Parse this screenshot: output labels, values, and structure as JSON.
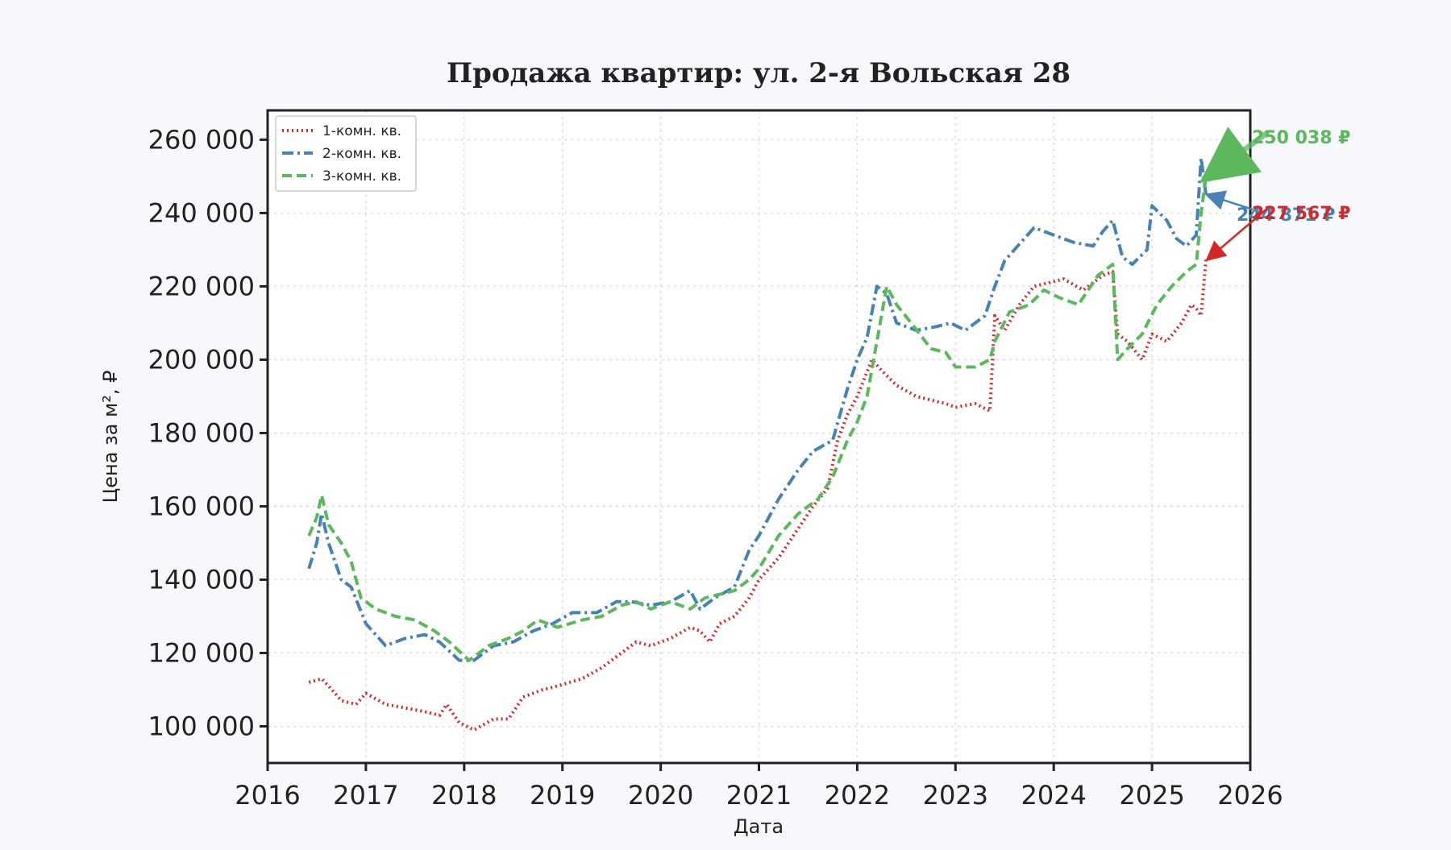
{
  "chart_data": {
    "type": "line",
    "title": "Продажа квартир: ул. 2-я Вольская 28",
    "xlabel": "Дата",
    "ylabel": "Цена за м², ₽",
    "xlim": [
      2016.0,
      2026.0
    ],
    "ylim": [
      90000,
      268000
    ],
    "x_ticks": [
      2016,
      2017,
      2018,
      2019,
      2020,
      2021,
      2022,
      2023,
      2024,
      2025,
      2026
    ],
    "y_ticks": [
      100000,
      120000,
      140000,
      160000,
      180000,
      200000,
      220000,
      240000,
      260000
    ],
    "y_tick_labels": [
      "100 000",
      "120 000",
      "140 000",
      "160 000",
      "180 000",
      "200 000",
      "220 000",
      "240 000",
      "260 000"
    ],
    "grid": true,
    "legend_position": "top-left",
    "series": [
      {
        "name": "1-комн. кв.",
        "color": "#d62728",
        "style": "dotted",
        "x": [
          2016.42,
          2016.55,
          2016.62,
          2016.75,
          2016.9,
          2017.0,
          2017.2,
          2017.4,
          2017.6,
          2017.75,
          2017.82,
          2017.95,
          2018.1,
          2018.3,
          2018.45,
          2018.6,
          2018.8,
          2018.95,
          2019.2,
          2019.4,
          2019.6,
          2019.75,
          2019.9,
          2020.1,
          2020.3,
          2020.4,
          2020.5,
          2020.6,
          2020.75,
          2020.9,
          2021.0,
          2021.2,
          2021.4,
          2021.55,
          2021.7,
          2021.8,
          2021.9,
          2022.0,
          2022.15,
          2022.25,
          2022.4,
          2022.6,
          2022.75,
          2022.9,
          2023.0,
          2023.2,
          2023.35,
          2023.4,
          2023.5,
          2023.65,
          2023.8,
          2023.95,
          2024.1,
          2024.3,
          2024.5,
          2024.6,
          2024.65,
          2024.75,
          2024.9,
          2025.0,
          2025.15,
          2025.3,
          2025.4,
          2025.45,
          2025.5,
          2025.55
        ],
        "y": [
          112000,
          113000,
          111000,
          107000,
          106000,
          109000,
          106000,
          105000,
          104000,
          103000,
          106000,
          101000,
          99000,
          102000,
          102000,
          108000,
          110000,
          111000,
          113000,
          116000,
          120000,
          123000,
          122000,
          124000,
          127000,
          126000,
          123000,
          128000,
          130000,
          135000,
          140000,
          146000,
          154000,
          160000,
          165000,
          178000,
          185000,
          190000,
          200000,
          197000,
          193000,
          190000,
          189000,
          188000,
          187000,
          188000,
          186000,
          212000,
          208000,
          215000,
          220000,
          221000,
          222000,
          219000,
          223000,
          224000,
          207000,
          205000,
          200000,
          207000,
          205000,
          210000,
          215000,
          214000,
          212000,
          227567
        ]
      },
      {
        "name": "2-комн. кв.",
        "color": "#4682b4",
        "style": "dashdot",
        "x": [
          2016.42,
          2016.5,
          2016.55,
          2016.62,
          2016.75,
          2016.85,
          2017.0,
          2017.2,
          2017.4,
          2017.6,
          2017.75,
          2017.95,
          2018.1,
          2018.3,
          2018.5,
          2018.7,
          2018.9,
          2019.1,
          2019.35,
          2019.55,
          2019.7,
          2019.9,
          2020.1,
          2020.3,
          2020.4,
          2020.55,
          2020.75,
          2020.9,
          2021.0,
          2021.2,
          2021.4,
          2021.55,
          2021.75,
          2021.9,
          2022.0,
          2022.1,
          2022.2,
          2022.3,
          2022.4,
          2022.6,
          2022.8,
          2022.95,
          2023.1,
          2023.3,
          2023.4,
          2023.5,
          2023.6,
          2023.8,
          2024.0,
          2024.2,
          2024.4,
          2024.5,
          2024.6,
          2024.7,
          2024.8,
          2024.95,
          2025.0,
          2025.15,
          2025.25,
          2025.35,
          2025.45,
          2025.5,
          2025.55
        ],
        "y": [
          143000,
          150000,
          158000,
          150000,
          140000,
          138000,
          128000,
          122000,
          124000,
          125000,
          123000,
          118000,
          118000,
          122000,
          123000,
          126000,
          128000,
          131000,
          131000,
          134000,
          134000,
          133000,
          134000,
          137000,
          132000,
          135000,
          138000,
          148000,
          152000,
          162000,
          170000,
          175000,
          178000,
          192000,
          200000,
          206000,
          220000,
          218000,
          210000,
          208000,
          209000,
          210000,
          208000,
          212000,
          220000,
          227000,
          230000,
          236000,
          234000,
          232000,
          231000,
          235000,
          238000,
          228000,
          226000,
          230000,
          242000,
          238000,
          233000,
          231000,
          234000,
          255000,
          244871
        ]
      },
      {
        "name": "3-комн. кв.",
        "color": "#5cb85c",
        "style": "dashed",
        "x": [
          2016.42,
          2016.5,
          2016.55,
          2016.62,
          2016.75,
          2016.85,
          2016.95,
          2017.1,
          2017.3,
          2017.5,
          2017.7,
          2017.85,
          2018.05,
          2018.25,
          2018.45,
          2018.6,
          2018.75,
          2018.95,
          2019.2,
          2019.4,
          2019.6,
          2019.75,
          2019.9,
          2020.1,
          2020.3,
          2020.45,
          2020.6,
          2020.75,
          2020.9,
          2021.0,
          2021.2,
          2021.4,
          2021.6,
          2021.75,
          2021.9,
          2022.0,
          2022.1,
          2022.2,
          2022.3,
          2022.4,
          2022.55,
          2022.75,
          2022.9,
          2023.0,
          2023.2,
          2023.35,
          2023.4,
          2023.55,
          2023.75,
          2023.9,
          2024.05,
          2024.25,
          2024.45,
          2024.6,
          2024.65,
          2024.75,
          2024.9,
          2025.05,
          2025.2,
          2025.35,
          2025.45,
          2025.5,
          2025.55
        ],
        "y": [
          152000,
          157000,
          163000,
          155000,
          150000,
          145000,
          135000,
          132000,
          130000,
          129000,
          126000,
          123000,
          118000,
          122000,
          124000,
          126000,
          129000,
          127000,
          129000,
          130000,
          133000,
          134000,
          132000,
          134000,
          132000,
          135000,
          136000,
          137000,
          140000,
          143000,
          152000,
          158000,
          162000,
          168000,
          178000,
          183000,
          190000,
          205000,
          220000,
          215000,
          210000,
          203000,
          202000,
          198000,
          198000,
          200000,
          205000,
          213000,
          215000,
          219000,
          217000,
          215000,
          223000,
          226000,
          200000,
          203000,
          207000,
          215000,
          220000,
          224000,
          226000,
          240000,
          250038
        ]
      }
    ],
    "annotations": [
      {
        "text": "250 038 ₽",
        "series": 2,
        "x": 2025.55,
        "y": 250038
      },
      {
        "text": "244 871 ₽",
        "series": 1,
        "x": 2025.55,
        "y": 244871
      },
      {
        "text": "227 567 ₽",
        "series": 0,
        "x": 2025.55,
        "y": 227567
      }
    ]
  }
}
